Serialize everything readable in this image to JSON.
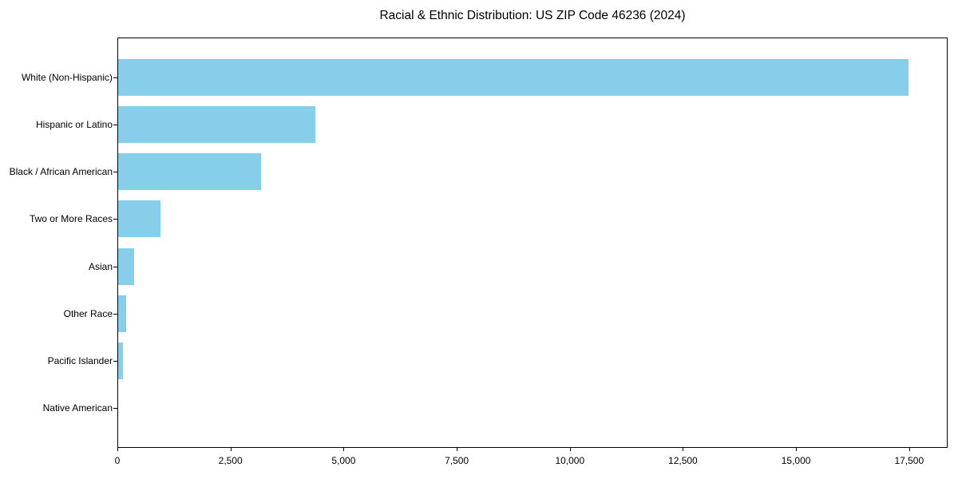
{
  "chart_data": {
    "type": "bar",
    "orientation": "horizontal",
    "title": "Racial & Ethnic Distribution: US ZIP Code 46236 (2024)",
    "categories": [
      "White (Non-Hispanic)",
      "Hispanic or Latino",
      "Black / African American",
      "Two or More Races",
      "Asian",
      "Other Race",
      "Pacific Islander",
      "Native American"
    ],
    "values": [
      17460,
      4350,
      3165,
      930,
      355,
      175,
      105,
      0
    ],
    "xlabel": "",
    "ylabel": "",
    "xlim": [
      0,
      18350
    ],
    "xticks": [
      0,
      2500,
      5000,
      7500,
      10000,
      12500,
      15000,
      17500
    ],
    "bar_color": "#87CEEB",
    "axis_color": "#000000",
    "background_color": "#ffffff",
    "grid": false,
    "legend": null
  }
}
